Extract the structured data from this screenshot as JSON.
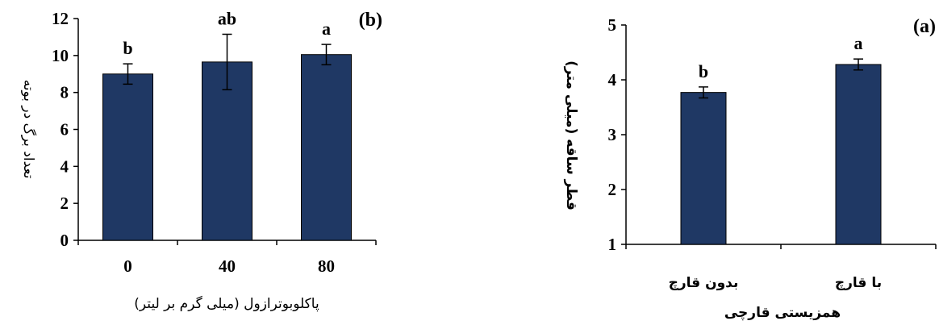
{
  "chart_data": [
    {
      "type": "bar",
      "panel_label": "(b)",
      "categories": [
        "0",
        "40",
        "80"
      ],
      "values": [
        9.0,
        9.65,
        10.05
      ],
      "errors": [
        0.55,
        1.5,
        0.55
      ],
      "significance": [
        "b",
        "ab",
        "a"
      ],
      "xlabel": "پاکلوبوترازول (میلی گرم بر لیتر)",
      "ylabel": "تعداد برگ در بوته",
      "ylim": [
        0,
        12
      ],
      "yticks": [
        "0",
        "2",
        "4",
        "6",
        "8",
        "10",
        "12"
      ],
      "bar_color": "#1f3864"
    },
    {
      "type": "bar",
      "panel_label": "(a)",
      "categories": [
        "بدون قارچ",
        "با قارچ"
      ],
      "values": [
        3.77,
        4.28
      ],
      "errors": [
        0.1,
        0.1
      ],
      "significance": [
        "b",
        "a"
      ],
      "xlabel": "همزیستی قارچی",
      "ylabel": "قطر ساقه (میلی متر)",
      "ylim": [
        1,
        5
      ],
      "yticks": [
        "1",
        "2",
        "3",
        "4",
        "5"
      ],
      "bar_color": "#1f3864"
    }
  ]
}
